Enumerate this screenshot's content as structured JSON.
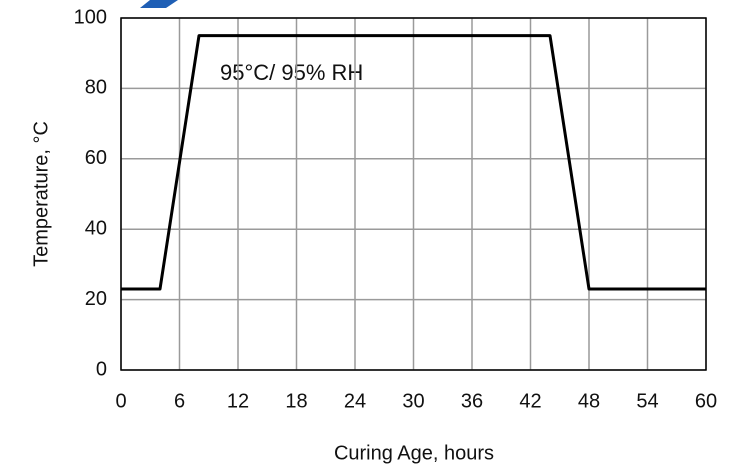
{
  "chart_data": {
    "type": "line",
    "x_label": "Curing Age, hours",
    "y_label": "Temperature, °C",
    "annotation": "95°C/ 95% RH",
    "x": [
      0,
      4,
      8,
      44,
      48,
      60
    ],
    "series": [
      {
        "color": "#000000",
        "values": [
          23,
          23,
          95,
          95,
          23,
          23
        ]
      }
    ],
    "xlim": [
      0,
      60
    ],
    "xticks": [
      0,
      6,
      12,
      18,
      24,
      30,
      36,
      42,
      48,
      54,
      60
    ],
    "ylim": [
      0,
      100
    ],
    "yticks": [
      0,
      20,
      40,
      60,
      80,
      100
    ],
    "grid": true
  }
}
